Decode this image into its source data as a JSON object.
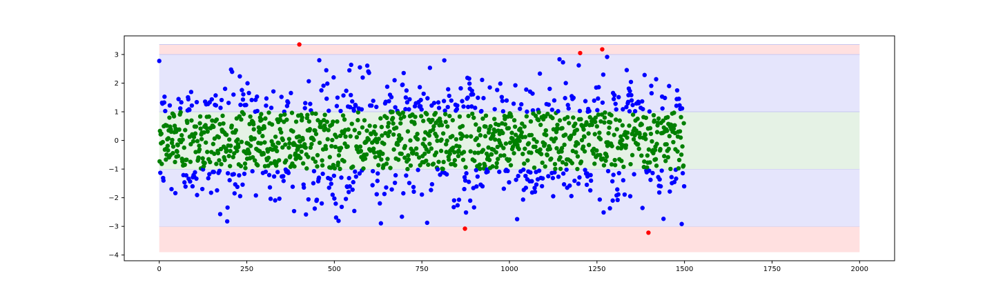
{
  "chart_data": {
    "type": "scatter",
    "title": "",
    "xlabel": "",
    "ylabel": "",
    "xlim": [
      -100,
      2100
    ],
    "ylim": [
      -4.2,
      3.65
    ],
    "x_ticks": [
      0,
      250,
      500,
      750,
      1000,
      1250,
      1500,
      1750,
      2000
    ],
    "y_ticks": [
      -4,
      -3,
      -2,
      -1,
      0,
      1,
      2,
      3
    ],
    "grid": false,
    "n_points": 1500,
    "bands": [
      {
        "y_from": -3.9,
        "y_to": -3.0,
        "x_from": 0,
        "x_to": 2000,
        "color": "#ffe0e0"
      },
      {
        "y_from": 3.0,
        "y_to": 3.35,
        "x_from": 0,
        "x_to": 2000,
        "color": "#ffe0e0"
      },
      {
        "y_from": -3.0,
        "y_to": -1.0,
        "x_from": 0,
        "x_to": 2000,
        "color": "#e5e5fc"
      },
      {
        "y_from": 1.0,
        "y_to": 3.0,
        "x_from": 0,
        "x_to": 2000,
        "color": "#e5e5fc"
      },
      {
        "y_from": -1.0,
        "y_to": 1.0,
        "x_from": 0,
        "x_to": 2000,
        "color": "#e5f2e5"
      }
    ],
    "series": [
      {
        "color": "#0000ff",
        "rule": "1 <= |y| < 3"
      },
      {
        "color": "#008000",
        "rule": "|y| < 1"
      },
      {
        "color": "#ff0000",
        "rule": "|y| >= 3"
      }
    ],
    "outliers": [
      {
        "x": 400,
        "y": 3.35
      },
      {
        "x": 1202,
        "y": 3.05
      },
      {
        "x": 1265,
        "y": 3.18
      },
      {
        "x": 873,
        "y": -3.08
      },
      {
        "x": 1397,
        "y": -3.22
      }
    ]
  }
}
